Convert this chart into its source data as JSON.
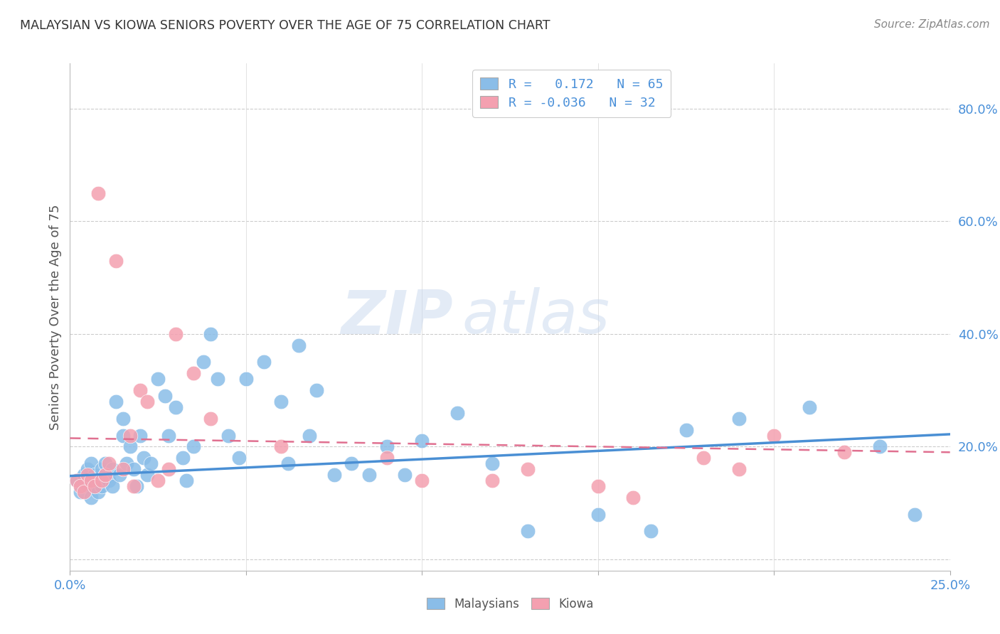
{
  "title": "MALAYSIAN VS KIOWA SENIORS POVERTY OVER THE AGE OF 75 CORRELATION CHART",
  "source": "Source: ZipAtlas.com",
  "ylabel": "Seniors Poverty Over the Age of 75",
  "y_ticks": [
    0.0,
    0.2,
    0.4,
    0.6,
    0.8
  ],
  "y_tick_labels": [
    "",
    "20.0%",
    "40.0%",
    "60.0%",
    "80.0%"
  ],
  "x_range": [
    0.0,
    0.25
  ],
  "y_range": [
    -0.02,
    0.88
  ],
  "watermark_zip": "ZIP",
  "watermark_atlas": "atlas",
  "legend_r1": "R =   0.172   N = 65",
  "legend_r2": "R = -0.036   N = 32",
  "blue_color": "#8abde8",
  "pink_color": "#f4a0b0",
  "blue_line_color": "#4a8fd4",
  "pink_line_color": "#e07090",
  "malaysian_x": [
    0.002,
    0.003,
    0.004,
    0.005,
    0.005,
    0.006,
    0.006,
    0.007,
    0.007,
    0.008,
    0.008,
    0.009,
    0.009,
    0.01,
    0.01,
    0.011,
    0.012,
    0.012,
    0.013,
    0.014,
    0.015,
    0.015,
    0.016,
    0.017,
    0.018,
    0.019,
    0.02,
    0.021,
    0.022,
    0.023,
    0.025,
    0.027,
    0.028,
    0.03,
    0.032,
    0.033,
    0.035,
    0.038,
    0.04,
    0.042,
    0.045,
    0.048,
    0.05,
    0.055,
    0.06,
    0.062,
    0.065,
    0.068,
    0.07,
    0.075,
    0.08,
    0.085,
    0.09,
    0.095,
    0.1,
    0.11,
    0.12,
    0.13,
    0.15,
    0.165,
    0.175,
    0.19,
    0.21,
    0.23,
    0.24
  ],
  "malaysian_y": [
    0.14,
    0.12,
    0.15,
    0.13,
    0.16,
    0.11,
    0.17,
    0.13,
    0.15,
    0.12,
    0.14,
    0.16,
    0.13,
    0.15,
    0.17,
    0.14,
    0.16,
    0.13,
    0.28,
    0.15,
    0.22,
    0.25,
    0.17,
    0.2,
    0.16,
    0.13,
    0.22,
    0.18,
    0.15,
    0.17,
    0.32,
    0.29,
    0.22,
    0.27,
    0.18,
    0.14,
    0.2,
    0.35,
    0.4,
    0.32,
    0.22,
    0.18,
    0.32,
    0.35,
    0.28,
    0.17,
    0.38,
    0.22,
    0.3,
    0.15,
    0.17,
    0.15,
    0.2,
    0.15,
    0.21,
    0.26,
    0.17,
    0.05,
    0.08,
    0.05,
    0.23,
    0.25,
    0.27,
    0.2,
    0.08
  ],
  "kiowa_x": [
    0.002,
    0.003,
    0.004,
    0.005,
    0.006,
    0.007,
    0.008,
    0.009,
    0.01,
    0.011,
    0.013,
    0.015,
    0.017,
    0.018,
    0.02,
    0.022,
    0.025,
    0.028,
    0.03,
    0.035,
    0.04,
    0.06,
    0.09,
    0.1,
    0.12,
    0.13,
    0.15,
    0.16,
    0.18,
    0.19,
    0.2,
    0.22
  ],
  "kiowa_y": [
    0.14,
    0.13,
    0.12,
    0.15,
    0.14,
    0.13,
    0.65,
    0.14,
    0.15,
    0.17,
    0.53,
    0.16,
    0.22,
    0.13,
    0.3,
    0.28,
    0.14,
    0.16,
    0.4,
    0.33,
    0.25,
    0.2,
    0.18,
    0.14,
    0.14,
    0.16,
    0.13,
    0.11,
    0.18,
    0.16,
    0.22,
    0.19
  ],
  "blue_trend_x": [
    0.0,
    0.25
  ],
  "blue_trend_y": [
    0.148,
    0.222
  ],
  "pink_trend_x": [
    0.0,
    0.25
  ],
  "pink_trend_y": [
    0.215,
    0.19
  ],
  "grid_color": "#cccccc",
  "vgrid_color": "#dddddd",
  "background_color": "#ffffff",
  "title_color": "#333333",
  "axis_color": "#4a90d9",
  "source_color": "#888888"
}
